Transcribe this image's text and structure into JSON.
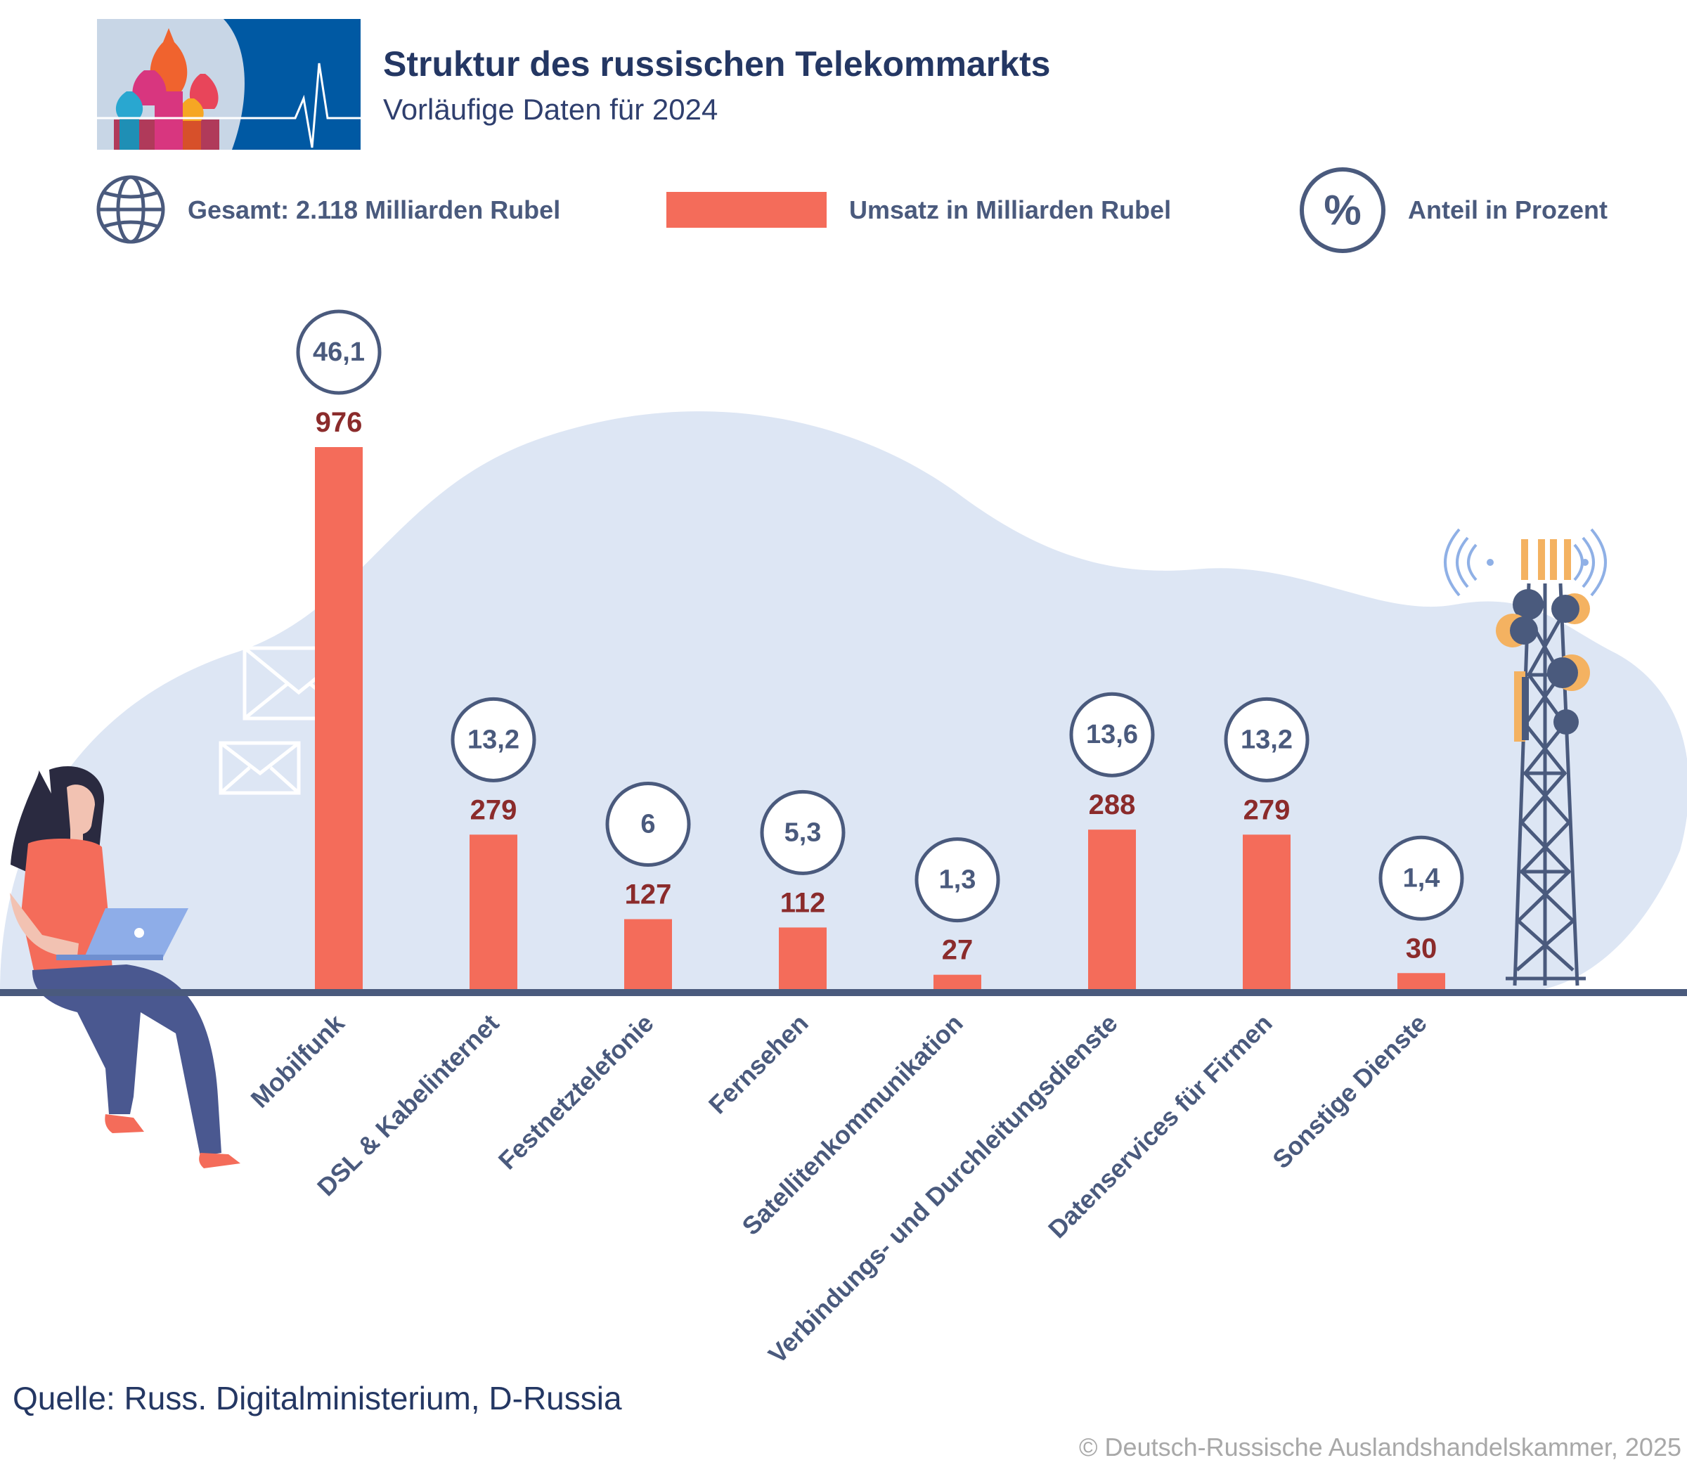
{
  "header": {
    "title": "Struktur des russischen Telekommarkts",
    "subtitle": "Vorläufige Daten für 2024"
  },
  "legend": {
    "total": "Gesamt: 2.118 Milliarden Rubel",
    "revenue": "Umsatz in Milliarden Rubel",
    "share": "Anteil in Prozent",
    "share_symbol": "%"
  },
  "chart_data": {
    "type": "bar",
    "title": "Struktur des russischen Telekommarkts",
    "subtitle": "Vorläufige Daten für 2024",
    "unit": "Milliarden Rubel",
    "total": "2.118",
    "categories": [
      "Mobilfunk",
      "DSL & Kabelinternet",
      "Festnetztelefonie",
      "Fernsehen",
      "Satellitenkommunikation",
      "Verbindungs- und Durchleitungsdienste",
      "Datenservices für Firmen",
      "Sonstige Dienste"
    ],
    "values": [
      976,
      279,
      127,
      112,
      27,
      288,
      279,
      30
    ],
    "value_labels": [
      "976",
      "279",
      "127",
      "112",
      "27",
      "288",
      "279",
      "30"
    ],
    "shares": [
      46.1,
      13.2,
      6,
      5.3,
      1.3,
      13.6,
      13.2,
      1.4
    ],
    "share_labels": [
      "46,1",
      "13,2",
      "6",
      "5,3",
      "1,3",
      "13,6",
      "13,2",
      "1,4"
    ],
    "ylim": [
      0,
      976
    ],
    "colors": {
      "bar": "#F46C5A",
      "baseline": "#4A5A7D",
      "blob": "#DDE6F4"
    }
  },
  "footer": {
    "source": "Quelle: Russ. Digitalministerium, D-Russia",
    "copyright": "© Deutsch-Russische Auslandshandelskammer, 2025"
  }
}
